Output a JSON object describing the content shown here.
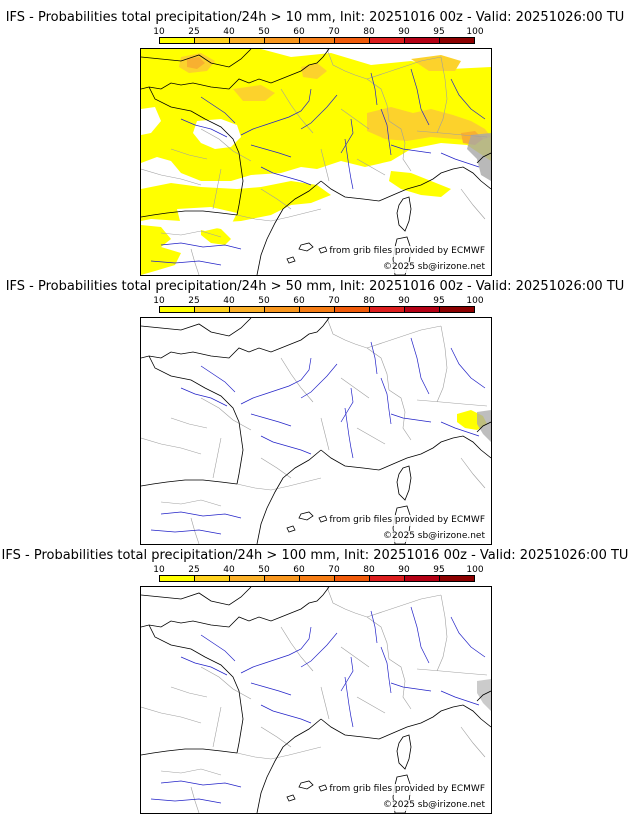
{
  "scale": {
    "labels": [
      "10",
      "25",
      "40",
      "50",
      "60",
      "70",
      "80",
      "90",
      "95",
      "100"
    ],
    "colors": [
      "#ffff00",
      "#ffd21e",
      "#fbb028",
      "#f8961e",
      "#f57c14",
      "#f05a0a",
      "#dc1e1e",
      "#b40014",
      "#8c0000",
      "#5a0000"
    ]
  },
  "colors": {
    "coast": "#000000",
    "river": "#2323c8",
    "admin": "#a0a0a0",
    "prob_10": "#ffff00",
    "prob_25": "#fcd22c",
    "prob_40": "#f8b030",
    "high_relief": "#a8a8a8"
  },
  "panels": [
    {
      "title": "IFS - Probabilities total precipitation/24h > 10 mm, Init: 20251016 00z - Valid: 20251026:00 TU",
      "credit_source": "from grib files provided by ECMWF",
      "credit_copy": "©2025 sb@irizone.net",
      "coverage": "widespread"
    },
    {
      "title": "IFS - Probabilities total precipitation/24h > 50 mm, Init: 20251016 00z - Valid: 20251026:00 TU",
      "credit_source": "from grib files provided by ECMWF",
      "credit_copy": "©2025 sb@irizone.net",
      "coverage": "limited"
    },
    {
      "title": "IFS - Probabilities total precipitation/24h > 100 mm, Init: 20251016 00z - Valid: 20251026:00 TU",
      "credit_source": "from grib files provided by ECMWF",
      "credit_copy": "©2025 sb@irizone.net",
      "coverage": "none"
    }
  ]
}
